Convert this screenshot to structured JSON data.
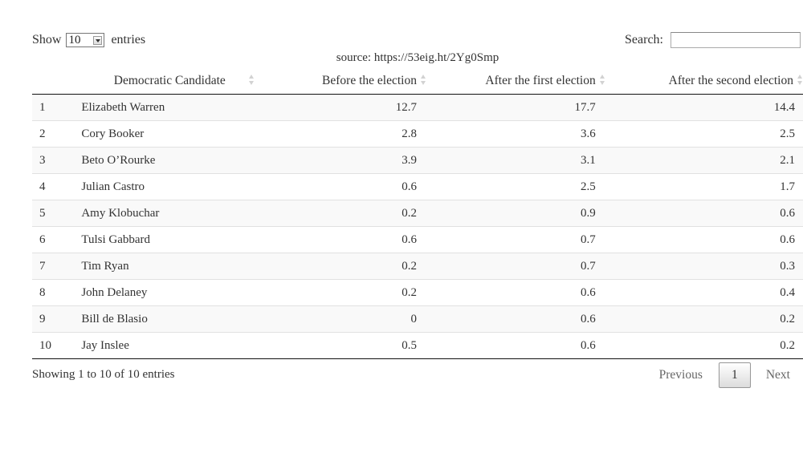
{
  "length_control": {
    "prefix": "Show",
    "selected": "10",
    "suffix": "entries"
  },
  "search": {
    "label": "Search:",
    "value": "",
    "placeholder": ""
  },
  "caption": "source: https://53eig.ht/2Yg0Smp",
  "table": {
    "headers": [
      "",
      "Democratic Candidate",
      "Before the election",
      "After the first election",
      "After the second election"
    ],
    "rows": [
      [
        "1",
        "Elizabeth Warren",
        "12.7",
        "17.7",
        "14.4"
      ],
      [
        "2",
        "Cory Booker",
        "2.8",
        "3.6",
        "2.5"
      ],
      [
        "3",
        "Beto O’Rourke",
        "3.9",
        "3.1",
        "2.1"
      ],
      [
        "4",
        "Julian Castro",
        "0.6",
        "2.5",
        "1.7"
      ],
      [
        "5",
        "Amy Klobuchar",
        "0.2",
        "0.9",
        "0.6"
      ],
      [
        "6",
        "Tulsi Gabbard",
        "0.6",
        "0.7",
        "0.6"
      ],
      [
        "7",
        "Tim Ryan",
        "0.2",
        "0.7",
        "0.3"
      ],
      [
        "8",
        "John Delaney",
        "0.2",
        "0.6",
        "0.4"
      ],
      [
        "9",
        "Bill de Blasio",
        "0",
        "0.6",
        "0.2"
      ],
      [
        "10",
        "Jay Inslee",
        "0.5",
        "0.6",
        "0.2"
      ]
    ]
  },
  "footer": {
    "info": "Showing 1 to 10 of 10 entries",
    "previous": "Previous",
    "current_page": "1",
    "next": "Next"
  }
}
